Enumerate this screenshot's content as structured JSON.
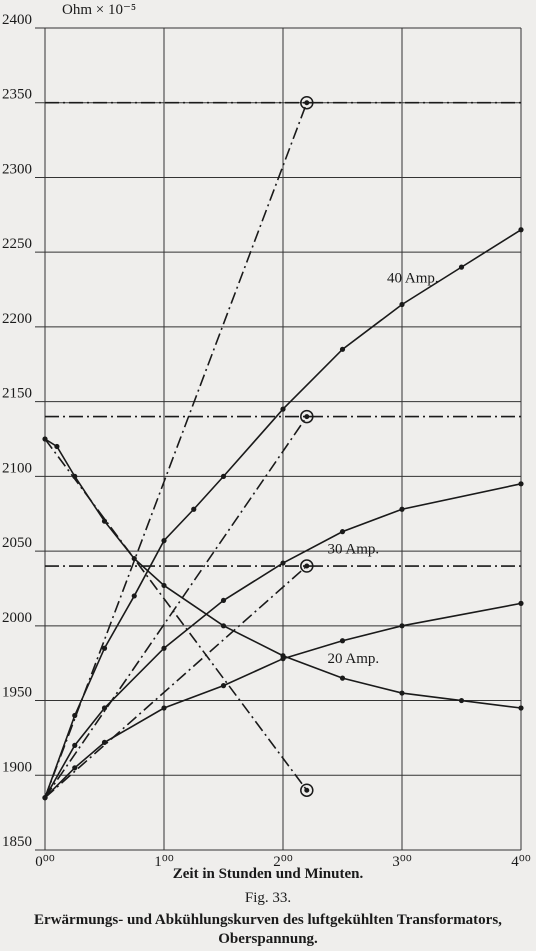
{
  "chart_data": {
    "type": "line",
    "y_label": "Ohm × 10⁻⁵",
    "x_label": "Zeit in Stunden und Minuten.",
    "figure_label": "Fig. 33.",
    "caption": [
      "Erwärmungs- und Abkühlungskurven des luftgekühlten Transformators,",
      "Oberspannung."
    ],
    "xlim": [
      0,
      4
    ],
    "ylim": [
      1850,
      2400
    ],
    "xticks": [
      {
        "value": 0,
        "label": "0⁰⁰"
      },
      {
        "value": 1,
        "label": "1⁰⁰"
      },
      {
        "value": 2,
        "label": "2⁰⁰"
      },
      {
        "value": 3,
        "label": "3⁰⁰"
      },
      {
        "value": 4,
        "label": "4⁰⁰"
      }
    ],
    "yticks": [
      1850,
      1900,
      1950,
      2000,
      2050,
      2100,
      2150,
      2200,
      2250,
      2300,
      2350,
      2400
    ],
    "grid": true,
    "hlines": [
      2350,
      2140,
      2040
    ],
    "series": [
      {
        "name": "40 Amp.",
        "color": "#1a1a1a",
        "style": "solid",
        "markers": true,
        "x": [
          0,
          0.25,
          0.5,
          0.75,
          1,
          1.25,
          1.5,
          2,
          2.5,
          3,
          3.5,
          4
        ],
        "values": [
          1885,
          1940,
          1985,
          2020,
          2057,
          2078,
          2100,
          2145,
          2185,
          2215,
          2240,
          2265
        ]
      },
      {
        "name": "30 Amp.",
        "color": "#1a1a1a",
        "style": "solid",
        "markers": true,
        "x": [
          0,
          0.25,
          0.5,
          1,
          1.5,
          2,
          2.5,
          3,
          4
        ],
        "values": [
          1885,
          1920,
          1945,
          1985,
          2017,
          2042,
          2063,
          2078,
          2095
        ]
      },
      {
        "name": "20 Amp.",
        "color": "#1a1a1a",
        "style": "solid",
        "markers": true,
        "x": [
          0,
          0.25,
          0.5,
          1,
          1.5,
          2,
          2.5,
          3,
          4
        ],
        "values": [
          1885,
          1905,
          1922,
          1945,
          1960,
          1978,
          1990,
          2000,
          2015
        ]
      },
      {
        "color": "#1a1a1a",
        "style": "solid",
        "markers": true,
        "x": [
          0,
          0.1,
          0.25,
          0.5,
          0.75,
          1,
          1.5,
          2,
          2.5,
          3,
          3.5,
          4
        ],
        "values": [
          2125,
          2120,
          2100,
          2070,
          2045,
          2027,
          2000,
          1980,
          1965,
          1955,
          1950,
          1945
        ]
      },
      {
        "color": "#1a1a1a",
        "style": "dashdot",
        "end_marker": "ring",
        "x": [
          0,
          2.2
        ],
        "values": [
          1885,
          2350
        ]
      },
      {
        "color": "#1a1a1a",
        "style": "dashdot",
        "end_marker": "ring",
        "x": [
          0,
          2.2
        ],
        "values": [
          1885,
          2140
        ]
      },
      {
        "color": "#1a1a1a",
        "style": "dashdot",
        "end_marker": "ring",
        "x": [
          0,
          2.2
        ],
        "values": [
          1885,
          2040
        ]
      },
      {
        "color": "#1a1a1a",
        "style": "dashdot",
        "end_marker": "ring",
        "x": [
          0,
          2.2
        ],
        "values": [
          2125,
          1890
        ]
      }
    ]
  }
}
